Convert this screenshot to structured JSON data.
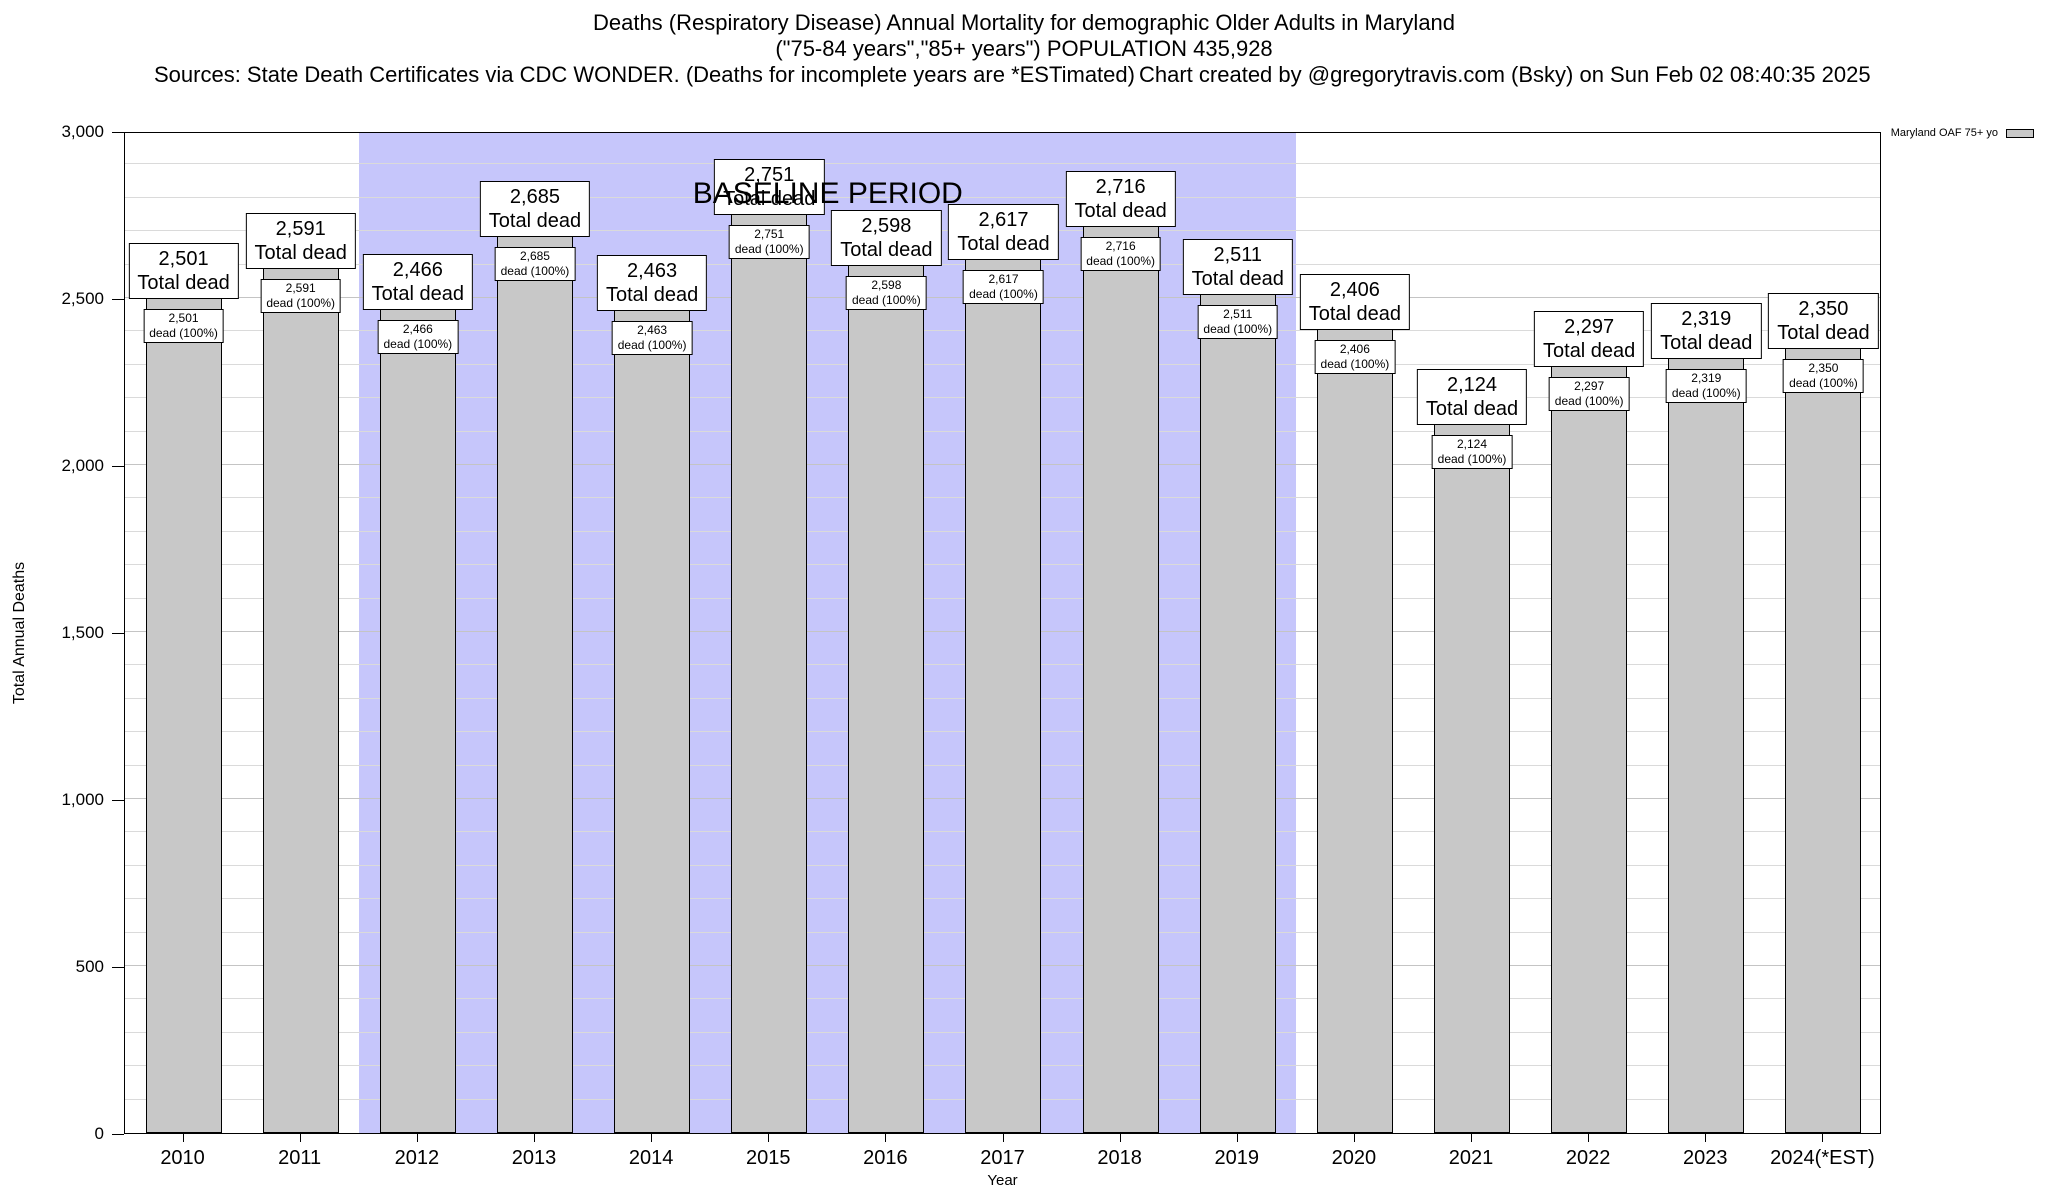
{
  "header": {
    "title_line1": "Deaths (Respiratory Disease) Annual Mortality for demographic Older Adults in Maryland",
    "title_line2": "(\"75-84 years\",\"85+ years\") POPULATION 435,928",
    "sources": "Sources: State Death Certificates via CDC WONDER. (Deaths for incomplete years are *ESTimated)",
    "credit": "Chart created by @gregorytravis.com (Bsky) on Sun Feb 02 08:40:35 2025"
  },
  "legend": {
    "label": "Maryland OAF 75+ yo"
  },
  "chart_data": {
    "type": "bar",
    "title": "Deaths (Respiratory Disease) Annual Mortality for demographic Older Adults in Maryland",
    "subtitle": "(\"75-84 years\",\"85+ years\") POPULATION 435,928",
    "xlabel": "Year",
    "ylabel": "Total Annual Deaths",
    "ylim": [
      0,
      3000
    ],
    "ytick_step_major": 500,
    "ytick_step_minor": 100,
    "grid": true,
    "legend_position": "top-right",
    "legend_entries": [
      "Maryland OAF 75+ yo"
    ],
    "categories": [
      "2010",
      "2011",
      "2012",
      "2013",
      "2014",
      "2015",
      "2016",
      "2017",
      "2018",
      "2019",
      "2020",
      "2021",
      "2022",
      "2023",
      "2024(*EST)"
    ],
    "values": [
      2501,
      2591,
      2466,
      2685,
      2463,
      2751,
      2598,
      2617,
      2716,
      2511,
      2406,
      2124,
      2297,
      2319,
      2350
    ],
    "bar_top_label_suffix": "Total dead",
    "bar_inner_label_suffix": "dead (100%)",
    "baseline_label": "BASELINE PERIOD",
    "baseline_start_index": 2,
    "baseline_end_index": 9,
    "colors": {
      "bar_fill": "#c8c8c8",
      "bar_border": "#000000",
      "baseline_band": "#c6c6fb",
      "gridline": "#dadada"
    }
  }
}
